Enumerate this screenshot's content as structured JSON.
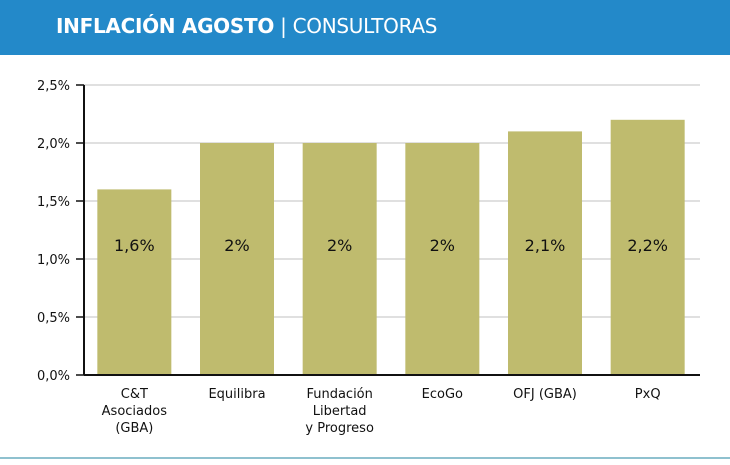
{
  "header": {
    "title_bold": "INFLACIÓN AGOSTO",
    "separator": "|",
    "title_light": "CONSULTORAS"
  },
  "colors": {
    "header": "#2389c9",
    "bar": "#bfbb6e"
  },
  "chart_data": {
    "type": "bar",
    "title": "",
    "categories": [
      [
        "C&T",
        "Asociados",
        "(GBA)"
      ],
      [
        "Equilibra"
      ],
      [
        "Fundación",
        "Libertad",
        "y Progreso"
      ],
      [
        "EcoGo"
      ],
      [
        "OFJ (GBA)"
      ],
      [
        "PxQ"
      ]
    ],
    "values": [
      1.6,
      2.0,
      2.0,
      2.0,
      2.1,
      2.2
    ],
    "data_labels": [
      "1,6%",
      "2%",
      "2%",
      "2%",
      "2,1%",
      "2,2%"
    ],
    "y_ticks": [
      0,
      0.5,
      1.0,
      1.5,
      2.0,
      2.5
    ],
    "y_tick_labels": [
      "0,0%",
      "0,5%",
      "1,0%",
      "1,5%",
      "2,0%",
      "2,5%"
    ],
    "ylim": [
      0,
      2.5
    ],
    "grid": true,
    "xlabel": "",
    "ylabel": ""
  }
}
